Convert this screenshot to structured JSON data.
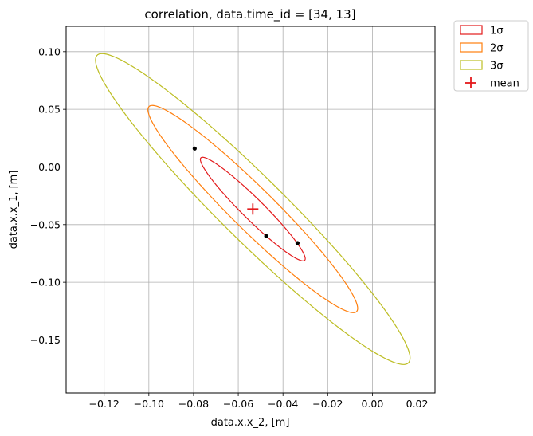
{
  "chart_data": {
    "type": "scatter",
    "title": "correlation, data.time_id = [34, 13]",
    "xlabel": "data.x.x_2, [m]",
    "ylabel": "data.x.x_1, [m]",
    "xlim": [
      -0.137,
      0.028
    ],
    "ylim": [
      -0.196,
      0.122
    ],
    "grid": true,
    "legend_position": "outside top-right",
    "x_ticks": [
      -0.12,
      -0.1,
      -0.08,
      -0.06,
      -0.04,
      -0.02,
      0.0,
      0.02
    ],
    "x_tick_labels": [
      "−0.12",
      "−0.10",
      "−0.08",
      "−0.06",
      "−0.04",
      "−0.02",
      "0.00",
      "0.02"
    ],
    "y_ticks": [
      0.1,
      0.05,
      0.0,
      -0.05,
      -0.1,
      -0.15
    ],
    "y_tick_labels": [
      "0.10",
      "0.05",
      "0.00",
      "−0.05",
      "−0.10",
      "−0.15"
    ],
    "mean": {
      "x": -0.0535,
      "y": -0.0365,
      "color": "#e31a1c",
      "label": "mean"
    },
    "ellipses": [
      {
        "label": "1σ",
        "color": "#e31a1c",
        "k": 1
      },
      {
        "label": "2σ",
        "color": "#ff7f0e",
        "k": 2
      },
      {
        "label": "3σ",
        "color": "#bcbd22",
        "k": 3
      }
    ],
    "covariance": {
      "sxx": 0.00055,
      "syy": 0.00202,
      "sxy": -0.00101
    },
    "points": [
      {
        "x": -0.0795,
        "y": 0.016
      },
      {
        "x": -0.0475,
        "y": -0.06
      },
      {
        "x": -0.0335,
        "y": -0.066
      }
    ]
  }
}
